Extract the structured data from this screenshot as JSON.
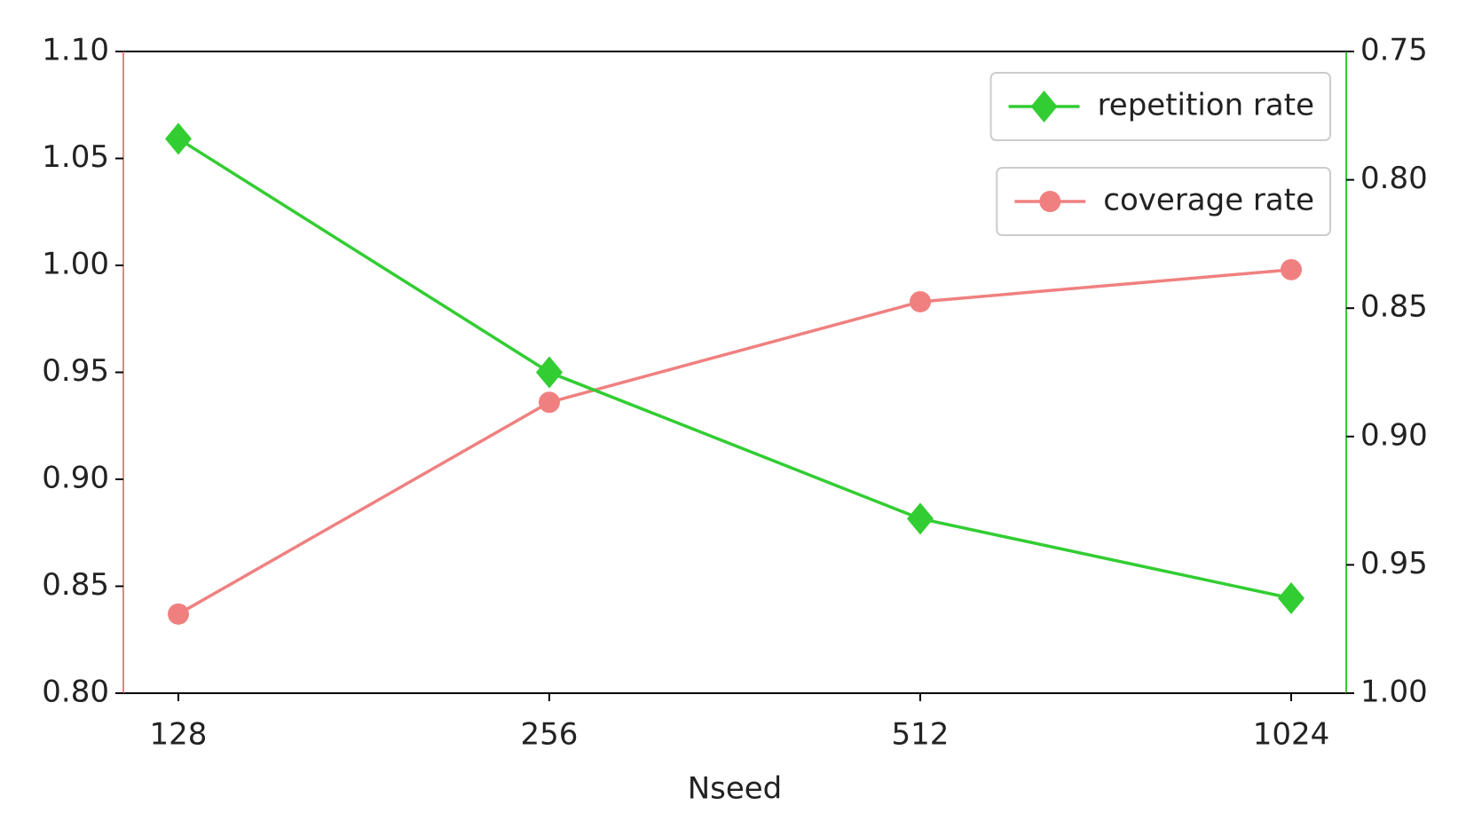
{
  "chart_data": {
    "type": "line",
    "x_label": "Nseed",
    "categories": [
      "128",
      "256",
      "512",
      "1024"
    ],
    "series": [
      {
        "name": "repetition rate",
        "color": "#32cd32",
        "marker": "diamond",
        "axis": "y2",
        "values": [
          0.784,
          0.875,
          0.932,
          0.963
        ]
      },
      {
        "name": "coverage rate",
        "color": "#f08080",
        "marker": "circle",
        "values": [
          0.837,
          0.936,
          0.983,
          0.998
        ]
      }
    ],
    "ylim": [
      0.8,
      1.1
    ],
    "yticks": [
      {
        "value": 0.8,
        "label": "0.80"
      },
      {
        "value": 0.85,
        "label": "0.85"
      },
      {
        "value": 0.9,
        "label": "0.90"
      },
      {
        "value": 0.95,
        "label": "0.95"
      },
      {
        "value": 1.0,
        "label": "1.00"
      },
      {
        "value": 1.05,
        "label": "1.05"
      },
      {
        "value": 1.1,
        "label": "1.10"
      }
    ],
    "y2lim": [
      1.0,
      0.75
    ],
    "y2ticks": [
      {
        "value": 0.75,
        "label": "0.75"
      },
      {
        "value": 0.8,
        "label": "0.80"
      },
      {
        "value": 0.85,
        "label": "0.85"
      },
      {
        "value": 0.9,
        "label": "0.90"
      },
      {
        "value": 0.95,
        "label": "0.95"
      },
      {
        "value": 1.0,
        "label": "1.00"
      }
    ],
    "legend": "upper right"
  }
}
